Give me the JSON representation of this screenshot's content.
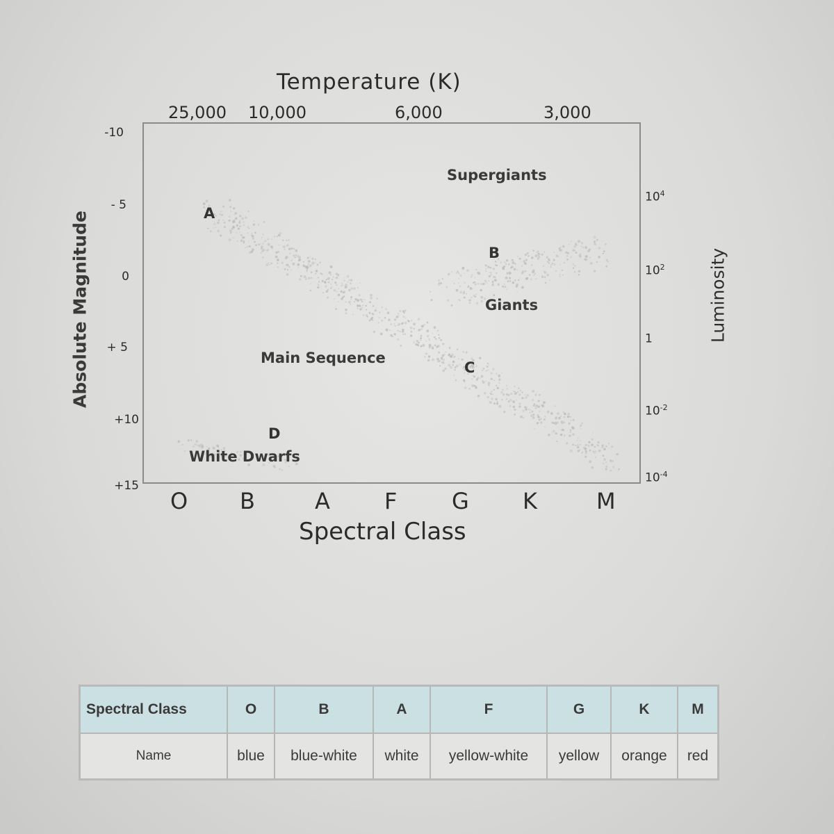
{
  "diagram": {
    "temperature_title": "Temperature (K)",
    "temperature_ticks": [
      "25,000",
      "10,000",
      "6,000",
      "3,000"
    ],
    "magnitude_title": "Absolute Magnitude",
    "magnitude_ticks": [
      "-10",
      "- 5",
      "0",
      "+ 5",
      "+10",
      "+15"
    ],
    "luminosity_title": "Luminosity",
    "luminosity_ticks": [
      {
        "base": "10",
        "exp": "4"
      },
      {
        "base": "10",
        "exp": "2"
      },
      {
        "base": "1",
        "exp": ""
      },
      {
        "base": "10",
        "exp": "-2"
      },
      {
        "base": "10",
        "exp": "-4"
      }
    ],
    "spectral_ticks": [
      "O",
      "B",
      "A",
      "F",
      "G",
      "K",
      "M"
    ],
    "spectral_title": "Spectral Class",
    "regions": {
      "supergiants": "Supergiants",
      "giants": "Giants",
      "main_sequence": "Main Sequence",
      "white_dwarfs": "White Dwarfs"
    },
    "points": {
      "a": "A",
      "b": "B",
      "c": "C",
      "d": "D"
    }
  },
  "table": {
    "class_header": "Spectral Class",
    "name_header": "Name",
    "classes": [
      "O",
      "B",
      "A",
      "F",
      "G",
      "K",
      "M"
    ],
    "names": [
      "blue",
      "blue-white",
      "white",
      "yellow-white",
      "yellow",
      "orange",
      "red"
    ]
  }
}
